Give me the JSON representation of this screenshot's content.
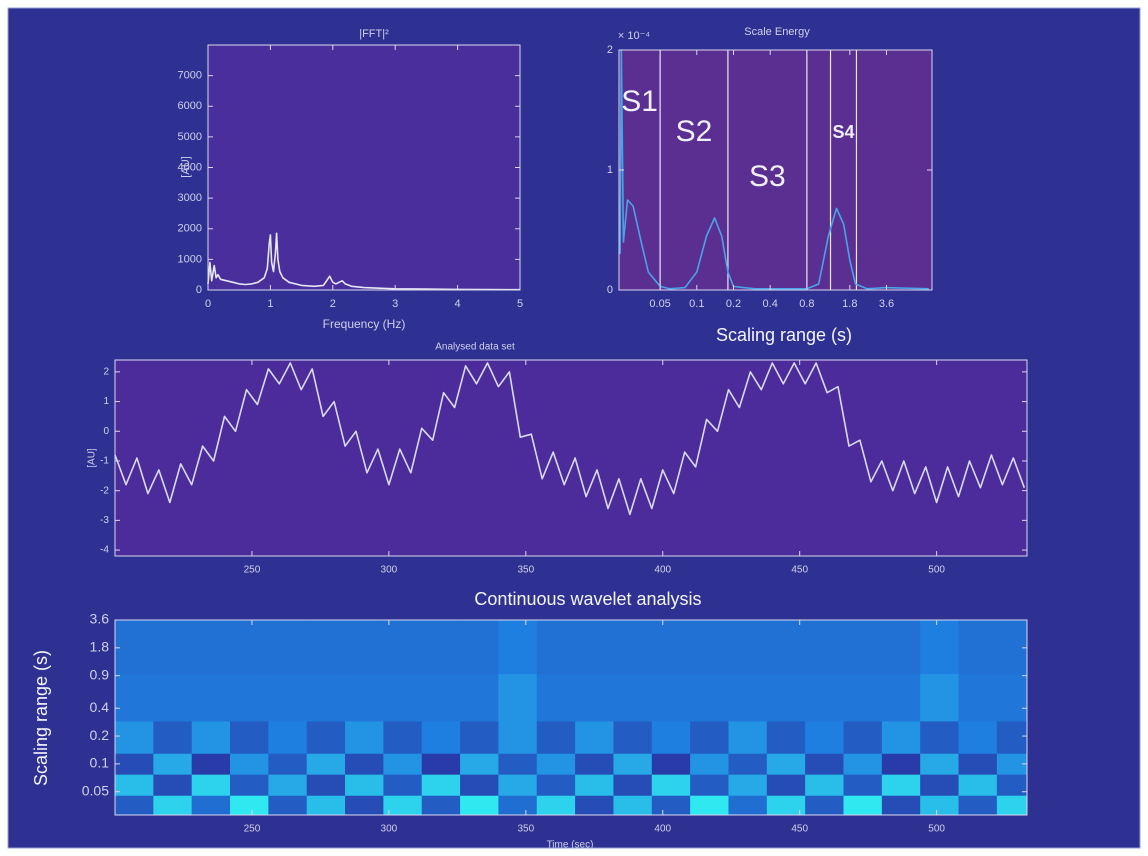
{
  "chart_data": [
    {
      "type": "line",
      "title": "|FFT|²",
      "xlabel": "Frequency (Hz)",
      "ylabel": "[AU]",
      "color": "#e6e6f5",
      "xlim": [
        0,
        5
      ],
      "xticks": [
        0,
        1,
        2,
        3,
        4,
        5
      ],
      "ylim": [
        0,
        8000
      ],
      "yticks": [
        0,
        1000,
        2000,
        3000,
        4000,
        5000,
        6000,
        7000
      ],
      "x": [
        0,
        0.03,
        0.06,
        0.1,
        0.13,
        0.16,
        0.2,
        0.3,
        0.4,
        0.5,
        0.6,
        0.7,
        0.8,
        0.9,
        0.95,
        0.98,
        1.0,
        1.02,
        1.05,
        1.08,
        1.1,
        1.12,
        1.15,
        1.2,
        1.3,
        1.5,
        1.7,
        1.85,
        1.9,
        1.95,
        2.0,
        2.05,
        2.1,
        2.15,
        2.2,
        2.3,
        2.5,
        3,
        3.5,
        4,
        4.5,
        5
      ],
      "values": [
        200,
        900,
        300,
        800,
        400,
        500,
        350,
        300,
        250,
        200,
        180,
        200,
        250,
        400,
        700,
        1500,
        1800,
        900,
        600,
        1200,
        1850,
        1000,
        600,
        400,
        250,
        150,
        120,
        150,
        300,
        450,
        250,
        200,
        250,
        300,
        200,
        120,
        80,
        40,
        30,
        20,
        15,
        10
      ]
    },
    {
      "type": "line",
      "title": "Scale Energy",
      "xlabel": "Scaling range (s)",
      "y_multiplier": "× 10⁻⁴",
      "color": "#4aa3e6",
      "xscale": "log",
      "xlim": [
        0.023,
        8.5
      ],
      "xticks": [
        0.05,
        0.1,
        0.2,
        0.4,
        0.8,
        1.8,
        3.6
      ],
      "ylim": [
        0,
        2
      ],
      "yticks": [
        0,
        1,
        2
      ],
      "boundaries": [
        0.05,
        0.18,
        0.8,
        1.25,
        2.04
      ],
      "annotations": [
        "S1",
        "S2",
        "S3",
        "S4"
      ],
      "x": [
        0.0235,
        0.024,
        0.025,
        0.027,
        0.03,
        0.035,
        0.04,
        0.05,
        0.06,
        0.08,
        0.1,
        0.12,
        0.14,
        0.16,
        0.18,
        0.2,
        0.3,
        0.5,
        0.8,
        1.0,
        1.2,
        1.4,
        1.6,
        1.8,
        2.0,
        2.5,
        3.6,
        8
      ],
      "values": [
        0.3,
        2.0,
        0.4,
        0.75,
        0.7,
        0.4,
        0.15,
        0.03,
        0.01,
        0.02,
        0.15,
        0.45,
        0.6,
        0.45,
        0.15,
        0.03,
        0.01,
        0.01,
        0.01,
        0.05,
        0.45,
        0.68,
        0.55,
        0.25,
        0.05,
        0.01,
        0.02,
        0.01
      ]
    },
    {
      "type": "line",
      "title": "Analysed data set",
      "ylabel": "[AU]",
      "color": "#d9d9f2",
      "xlim": [
        200,
        533
      ],
      "xticks": [
        250,
        300,
        350,
        400,
        450,
        500
      ],
      "ylim": [
        -4.2,
        2.4
      ],
      "yticks": [
        -4,
        -3,
        -2,
        -1,
        0,
        1,
        2
      ],
      "x": [
        200,
        204,
        208,
        212,
        216,
        220,
        224,
        228,
        232,
        236,
        240,
        244,
        248,
        252,
        256,
        260,
        264,
        268,
        272,
        276,
        280,
        284,
        288,
        292,
        296,
        300,
        304,
        308,
        312,
        316,
        320,
        324,
        328,
        332,
        336,
        340,
        344,
        348,
        352,
        356,
        360,
        364,
        368,
        372,
        376,
        380,
        384,
        388,
        392,
        396,
        400,
        404,
        408,
        412,
        416,
        420,
        424,
        428,
        432,
        436,
        440,
        444,
        448,
        452,
        456,
        460,
        464,
        468,
        472,
        476,
        480,
        484,
        488,
        492,
        496,
        500,
        504,
        508,
        512,
        516,
        520,
        524,
        528,
        532
      ],
      "values": [
        -0.8,
        -1.8,
        -0.9,
        -2.1,
        -1.3,
        -2.4,
        -1.1,
        -1.8,
        -0.5,
        -1.0,
        0.5,
        0,
        1.4,
        0.9,
        2.1,
        1.6,
        2.3,
        1.4,
        2.1,
        0.5,
        1.0,
        -0.5,
        0,
        -1.4,
        -0.6,
        -1.8,
        -0.6,
        -1.4,
        0.1,
        -0.3,
        1.3,
        0.8,
        2.2,
        1.6,
        2.3,
        1.5,
        2.0,
        -0.2,
        -0.1,
        -1.6,
        -0.7,
        -1.8,
        -0.9,
        -2.2,
        -1.3,
        -2.6,
        -1.6,
        -2.8,
        -1.6,
        -2.6,
        -1.3,
        -2.1,
        -0.7,
        -1.2,
        0.4,
        0,
        1.4,
        0.8,
        2.0,
        1.4,
        2.3,
        1.6,
        2.3,
        1.6,
        2.3,
        1.3,
        1.5,
        -0.5,
        -0.3,
        -1.7,
        -1.0,
        -2.0,
        -1.0,
        -2.1,
        -1.2,
        -2.4,
        -1.2,
        -2.2,
        -1.0,
        -1.9,
        -0.8,
        -1.8,
        -0.9,
        -1.9
      ]
    },
    {
      "type": "heatmap",
      "title": "Continuous wavelet analysis",
      "xlabel": "Time (sec)",
      "ylabel": "Scaling range (s)",
      "xlim": [
        200,
        533
      ],
      "xticks": [
        250,
        300,
        350,
        400,
        450,
        500
      ],
      "yscale": "log",
      "ylim": [
        0.028,
        3.6
      ],
      "yticks": [
        3.6,
        1.8,
        0.9,
        0.4,
        0.2,
        0.1,
        0.05
      ],
      "zlim": [
        0,
        1
      ],
      "colormap": [
        "#2a2a9a",
        "#1f7fe0",
        "#30e8f0"
      ],
      "x": [
        207,
        221,
        235,
        249,
        263,
        277,
        291,
        305,
        319,
        333,
        347,
        361,
        375,
        389,
        403,
        417,
        431,
        445,
        459,
        473,
        487,
        501,
        515,
        529
      ],
      "y": [
        0.035,
        0.06,
        0.1,
        0.17,
        0.5,
        1.8
      ],
      "z": [
        [
          0.3,
          0.9,
          0.4,
          1.0,
          0.3,
          0.8,
          0.2,
          0.9,
          0.3,
          1.0,
          0.4,
          0.9,
          0.2,
          0.8,
          0.3,
          1.0,
          0.4,
          0.9,
          0.3,
          1.0,
          0.2,
          0.8,
          0.3,
          0.9
        ],
        [
          0.8,
          0.2,
          0.9,
          0.3,
          0.7,
          0.2,
          0.8,
          0.3,
          0.9,
          0.2,
          0.7,
          0.3,
          0.8,
          0.2,
          0.9,
          0.3,
          0.7,
          0.2,
          0.8,
          0.3,
          0.9,
          0.2,
          0.8,
          0.3
        ],
        [
          0.2,
          0.7,
          0.1,
          0.6,
          0.3,
          0.7,
          0.2,
          0.6,
          0.1,
          0.7,
          0.3,
          0.6,
          0.2,
          0.7,
          0.1,
          0.6,
          0.3,
          0.7,
          0.2,
          0.6,
          0.1,
          0.7,
          0.2,
          0.6
        ],
        [
          0.6,
          0.3,
          0.6,
          0.3,
          0.5,
          0.3,
          0.6,
          0.3,
          0.5,
          0.3,
          0.6,
          0.3,
          0.6,
          0.3,
          0.5,
          0.3,
          0.6,
          0.3,
          0.5,
          0.3,
          0.6,
          0.3,
          0.5,
          0.3
        ],
        [
          0.45,
          0.45,
          0.45,
          0.45,
          0.45,
          0.45,
          0.45,
          0.45,
          0.45,
          0.45,
          0.6,
          0.45,
          0.45,
          0.45,
          0.45,
          0.45,
          0.45,
          0.45,
          0.45,
          0.45,
          0.45,
          0.6,
          0.45,
          0.45
        ],
        [
          0.42,
          0.42,
          0.42,
          0.42,
          0.42,
          0.42,
          0.42,
          0.42,
          0.42,
          0.42,
          0.5,
          0.42,
          0.42,
          0.42,
          0.42,
          0.42,
          0.42,
          0.42,
          0.42,
          0.42,
          0.42,
          0.5,
          0.42,
          0.42
        ]
      ]
    }
  ]
}
